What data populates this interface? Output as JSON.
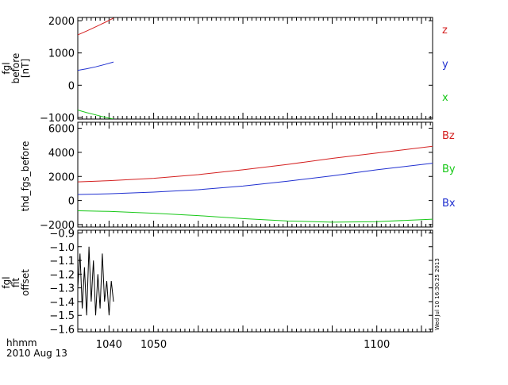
{
  "footer": {
    "time_label": "hhmm",
    "date_label": "2010 Aug 13"
  },
  "stamp": "Wed Jul 10 16:30:25 2013",
  "chart_data": [
    {
      "type": "line",
      "ylabel_lines": [
        "fgl",
        "before",
        "[nT]"
      ],
      "ylim": [
        -1050,
        2100
      ],
      "yticks": [
        2000,
        1000,
        0,
        -1000
      ],
      "xlim": [
        1033.0,
        1112.5
      ],
      "grid": false,
      "legend_placement": "right",
      "series": [
        {
          "name": "z",
          "color": "#d42020",
          "x": [
            1033.0,
            1035,
            1037,
            1039,
            1041
          ],
          "y": [
            1560,
            1680,
            1810,
            1940,
            2080
          ]
        },
        {
          "name": "y",
          "color": "#2030d0",
          "x": [
            1033.0,
            1035,
            1037,
            1039,
            1041
          ],
          "y": [
            460,
            510,
            570,
            640,
            720
          ]
        },
        {
          "name": "x",
          "color": "#18c818",
          "x": [
            1033.0,
            1035,
            1037,
            1039,
            1041
          ],
          "y": [
            -770,
            -850,
            -920,
            -990,
            -1050
          ]
        }
      ]
    },
    {
      "type": "line",
      "ylabel": "thd_fgs_before",
      "ylim": [
        -2200,
        6500
      ],
      "yticks": [
        6000,
        4000,
        2000,
        0,
        -2000
      ],
      "xlim": [
        1033.0,
        1112.5
      ],
      "grid": false,
      "legend_placement": "right",
      "series": [
        {
          "name": "Bz",
          "color": "#d42020",
          "x": [
            1033.0,
            1040,
            1050,
            1060,
            1070,
            1080,
            1090,
            1100,
            1112.5
          ],
          "y": [
            1550,
            1650,
            1850,
            2150,
            2550,
            3000,
            3500,
            3950,
            4500
          ]
        },
        {
          "name": "By",
          "color": "#18c818",
          "x": [
            1033.0,
            1040,
            1050,
            1060,
            1070,
            1080,
            1090,
            1100,
            1112.5
          ],
          "y": [
            -850,
            -900,
            -1050,
            -1250,
            -1500,
            -1700,
            -1800,
            -1750,
            -1550
          ]
        },
        {
          "name": "Bx",
          "color": "#2030d0",
          "x": [
            1033.0,
            1040,
            1050,
            1060,
            1070,
            1080,
            1090,
            1100,
            1112.5
          ],
          "y": [
            500,
            560,
            700,
            900,
            1200,
            1600,
            2050,
            2550,
            3100
          ]
        }
      ]
    },
    {
      "type": "line",
      "ylabel_lines": [
        "fgl",
        "fit",
        "offset"
      ],
      "ylim": [
        -1.62,
        -0.88
      ],
      "yticks": [
        -0.9,
        -1.0,
        -1.1,
        -1.2,
        -1.3,
        -1.4,
        -1.5,
        -1.6
      ],
      "xlim": [
        1033.0,
        1112.5
      ],
      "grid": false,
      "xticks": [
        1040,
        1050,
        1100
      ],
      "series": [
        {
          "color": "#000000",
          "x": [
            1033.0,
            1033.5,
            1034.0,
            1034.5,
            1035.0,
            1035.5,
            1036.0,
            1036.5,
            1037.0,
            1037.5,
            1038.0,
            1038.5,
            1039.0,
            1039.5,
            1040.0,
            1040.5,
            1041.0
          ],
          "y": [
            -1.3,
            -1.05,
            -1.45,
            -1.15,
            -1.5,
            -1.0,
            -1.4,
            -1.1,
            -1.5,
            -1.2,
            -1.45,
            -1.05,
            -1.4,
            -1.25,
            -1.5,
            -1.25,
            -1.4
          ]
        }
      ]
    }
  ]
}
